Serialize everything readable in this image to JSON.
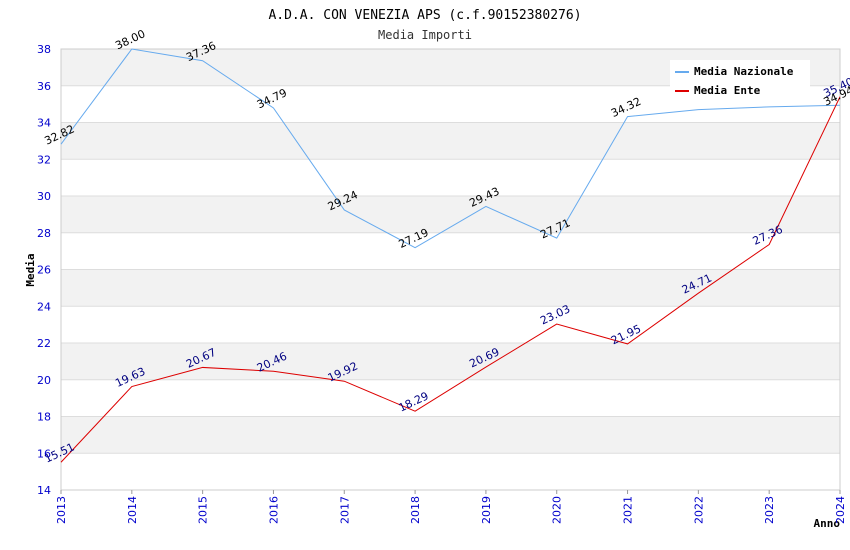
{
  "chart_data": {
    "type": "line",
    "title": "A.D.A. CON VENEZIA APS (c.f.90152380276)",
    "subtitle": "Media Importi",
    "xlabel": "Anno",
    "ylabel": "Media",
    "ylim": [
      14,
      38
    ],
    "yticks": [
      "14",
      "16",
      "18",
      "20",
      "22",
      "24",
      "26",
      "28",
      "30",
      "32",
      "34",
      "36",
      "38"
    ],
    "x": [
      "2013",
      "2014",
      "2015",
      "2016",
      "2017",
      "2018",
      "2019",
      "2020",
      "2021",
      "2022",
      "2023",
      "2024"
    ],
    "series": [
      {
        "name": "Media Nazionale",
        "color": "#66aaee",
        "values": [
          32.82,
          38.0,
          37.36,
          34.79,
          29.24,
          27.19,
          29.43,
          27.71,
          34.32,
          34.7,
          34.85,
          34.94
        ],
        "labels": [
          "32.82",
          "38.00",
          "37.36",
          "34.79",
          "29.24",
          "27.19",
          "29.43",
          "27.71",
          "34.32",
          "",
          "",
          "34.94"
        ]
      },
      {
        "name": "Media Ente",
        "color": "#dd0000",
        "values": [
          15.51,
          19.63,
          20.67,
          20.46,
          19.92,
          18.29,
          20.69,
          23.03,
          21.95,
          24.71,
          27.36,
          35.4
        ],
        "labels": [
          "15.51",
          "19.63",
          "20.67",
          "20.46",
          "19.92",
          "18.29",
          "20.69",
          "23.03",
          "21.95",
          "24.71",
          "27.36",
          "35.40"
        ]
      }
    ],
    "legend_position": "top-right",
    "grid": true
  }
}
